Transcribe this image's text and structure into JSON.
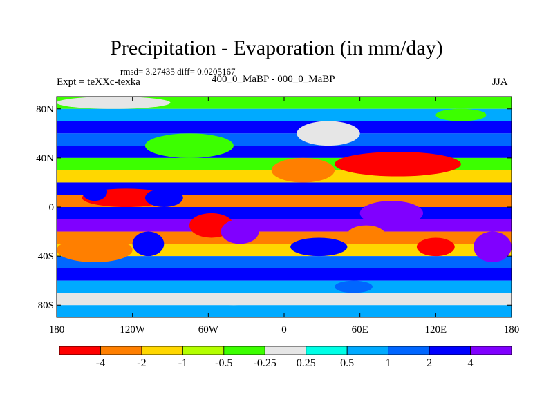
{
  "figure": {
    "title": "Precipitation - Evaporation (in mm/day)",
    "stats": "rmsd= 3.27435 diff= 0.0205167",
    "left_label": "Expt = teXXc-texka",
    "center_label": "400_0_MaBP - 000_0_MaBP",
    "right_label": "JJA"
  },
  "chart_data": {
    "type": "heatmap",
    "title": "Precipitation - Evaporation (in mm/day)",
    "xlabel": "",
    "ylabel": "",
    "xlim": [
      -180,
      180
    ],
    "ylim": [
      -90,
      90
    ],
    "x_ticks": [
      {
        "value": -180,
        "label": "180"
      },
      {
        "value": -120,
        "label": "120W"
      },
      {
        "value": -60,
        "label": "60W"
      },
      {
        "value": 0,
        "label": "0"
      },
      {
        "value": 60,
        "label": "60E"
      },
      {
        "value": 120,
        "label": "120E"
      },
      {
        "value": 180,
        "label": "180"
      }
    ],
    "y_ticks": [
      {
        "value": 80,
        "label": "80N"
      },
      {
        "value": 40,
        "label": "40N"
      },
      {
        "value": 0,
        "label": "0"
      },
      {
        "value": -40,
        "label": "40S"
      },
      {
        "value": -80,
        "label": "80S"
      }
    ],
    "colorbar": {
      "levels": [
        -4,
        -2,
        -1,
        -0.5,
        -0.25,
        0.25,
        0.5,
        1,
        2,
        4
      ],
      "level_labels": [
        "-4",
        "-2",
        "-1",
        "-0.5",
        "-0.25",
        "0.25",
        "0.5",
        "1",
        "2",
        "4"
      ],
      "colors": [
        "#ff0000",
        "#ff7f00",
        "#ffd700",
        "#b4ff00",
        "#3cff00",
        "#e6e6e6",
        "#00ffe6",
        "#00aaff",
        "#0066ff",
        "#0000ff",
        "#8000ff"
      ]
    },
    "bands": [
      {
        "lat_from": 90,
        "lat_to": 80,
        "value": -0.5
      },
      {
        "lat_from": 80,
        "lat_to": 70,
        "value": 0.5
      },
      {
        "lat_from": 70,
        "lat_to": 60,
        "value": 3
      },
      {
        "lat_from": 60,
        "lat_to": 50,
        "value": 1
      },
      {
        "lat_from": 50,
        "lat_to": 40,
        "value": 3
      },
      {
        "lat_from": 40,
        "lat_to": 30,
        "value": -0.3
      },
      {
        "lat_from": 30,
        "lat_to": 20,
        "value": -1.5
      },
      {
        "lat_from": 20,
        "lat_to": 10,
        "value": 3
      },
      {
        "lat_from": 10,
        "lat_to": 0,
        "value": -3
      },
      {
        "lat_from": 0,
        "lat_to": -10,
        "value": 2
      },
      {
        "lat_from": -10,
        "lat_to": -20,
        "value": 5
      },
      {
        "lat_from": -20,
        "lat_to": -30,
        "value": -3
      },
      {
        "lat_from": -30,
        "lat_to": -40,
        "value": -1.5
      },
      {
        "lat_from": -40,
        "lat_to": -50,
        "value": 1.5
      },
      {
        "lat_from": -50,
        "lat_to": -60,
        "value": 3
      },
      {
        "lat_from": -60,
        "lat_to": -70,
        "value": 0.7
      },
      {
        "lat_from": -70,
        "lat_to": -80,
        "value": 0
      },
      {
        "lat_from": -80,
        "lat_to": -90,
        "value": 0.7
      }
    ],
    "patches": [
      {
        "lon": [
          40,
          140
        ],
        "lat": [
          45,
          25
        ],
        "value": -5
      },
      {
        "lon": [
          -10,
          40
        ],
        "lat": [
          40,
          20
        ],
        "value": -3
      },
      {
        "lon": [
          -160,
          -90
        ],
        "lat": [
          15,
          0
        ],
        "value": -5
      },
      {
        "lon": [
          -160,
          -140
        ],
        "lat": [
          20,
          5
        ],
        "value": 3
      },
      {
        "lon": [
          -110,
          -80
        ],
        "lat": [
          15,
          0
        ],
        "value": 3
      },
      {
        "lon": [
          -75,
          -40
        ],
        "lat": [
          -5,
          -25
        ],
        "value": -5
      },
      {
        "lon": [
          -50,
          -20
        ],
        "lat": [
          -10,
          -30
        ],
        "value": 5
      },
      {
        "lon": [
          -180,
          -120
        ],
        "lat": [
          -25,
          -45
        ],
        "value": -3
      },
      {
        "lon": [
          -120,
          -95
        ],
        "lat": [
          -20,
          -40
        ],
        "value": 3
      },
      {
        "lon": [
          150,
          180
        ],
        "lat": [
          -20,
          -45
        ],
        "value": 5
      },
      {
        "lon": [
          105,
          135
        ],
        "lat": [
          -25,
          -40
        ],
        "value": -5
      },
      {
        "lon": [
          60,
          110
        ],
        "lat": [
          5,
          -15
        ],
        "value": 5
      },
      {
        "lon": [
          50,
          80
        ],
        "lat": [
          -15,
          -30
        ],
        "value": -3
      },
      {
        "lon": [
          -180,
          -90
        ],
        "lat": [
          90,
          80
        ],
        "value": 0
      },
      {
        "lon": [
          -110,
          -40
        ],
        "lat": [
          60,
          40
        ],
        "value": -0.4
      },
      {
        "lon": [
          10,
          60
        ],
        "lat": [
          70,
          50
        ],
        "value": 0
      },
      {
        "lon": [
          5,
          50
        ],
        "lat": [
          -25,
          -40
        ],
        "value": 2
      },
      {
        "lon": [
          40,
          70
        ],
        "lat": [
          -60,
          -70
        ],
        "value": 1.5
      },
      {
        "lon": [
          -60,
          -20
        ],
        "lat": [
          -70,
          -80
        ],
        "value": 0
      },
      {
        "lon": [
          120,
          160
        ],
        "lat": [
          80,
          70
        ],
        "value": -0.5
      }
    ]
  }
}
